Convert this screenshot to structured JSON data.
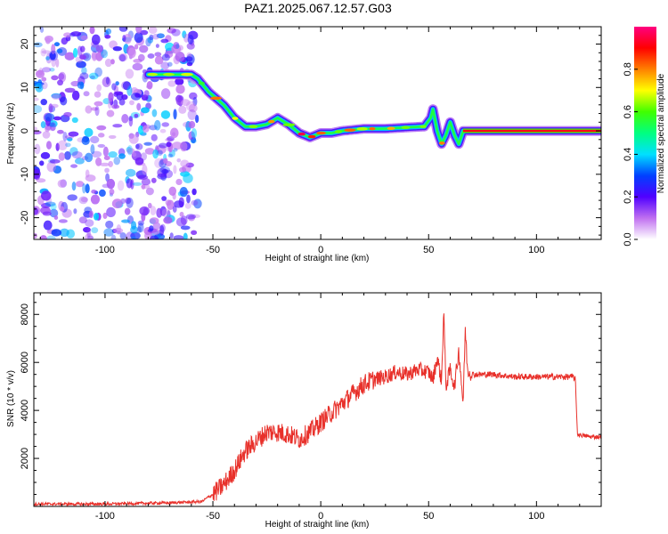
{
  "title": "PAZ1.2025.067.12.57.G03",
  "chart_data": [
    {
      "type": "heatmap",
      "xlabel": "Height of straight line (km)",
      "ylabel": "Frequency (Hz)",
      "xlim": [
        -133,
        130
      ],
      "ylim": [
        -25,
        24
      ],
      "xticks": [
        -100,
        -50,
        0,
        50,
        100
      ],
      "yticks": [
        -20,
        -10,
        0,
        10,
        20
      ],
      "colorbar": {
        "label": "Normalized spectral amplitude",
        "range": [
          0,
          1
        ],
        "ticks": [
          "0.0",
          "0.2",
          "0.4",
          "0.6",
          "0.8"
        ],
        "tick_values": [
          0,
          0.2,
          0.4,
          0.6,
          0.8
        ],
        "colors": [
          "#ffffff",
          "#c070f0",
          "#5000ff",
          "#0040ff",
          "#00e0ff",
          "#00ff80",
          "#40ff00",
          "#ffff00",
          "#ff8000",
          "#ff0000",
          "#ff0080"
        ]
      },
      "ridge": {
        "x": [
          -80,
          -60,
          -57,
          -52,
          -45,
          -40,
          -35,
          -30,
          -25,
          -20,
          -15,
          -10,
          -5,
          0,
          5,
          10,
          20,
          30,
          40,
          48,
          51,
          52,
          54,
          56,
          58,
          60,
          62,
          64,
          66,
          70,
          130
        ],
        "y": [
          13,
          13,
          12,
          9,
          6,
          3,
          1,
          1,
          1.5,
          3,
          1.5,
          -0.5,
          -1.5,
          -0.5,
          -0.5,
          0,
          0.5,
          0.5,
          0.8,
          1,
          3,
          5,
          0,
          -3,
          -1,
          2,
          -1,
          -3,
          0,
          0,
          0
        ]
      }
    },
    {
      "type": "line",
      "xlabel": "Height of straight line (km)",
      "ylabel": "SNR (10 * v/v)",
      "xlim": [
        -133,
        130
      ],
      "ylim": [
        0,
        8900
      ],
      "xticks": [
        -100,
        -50,
        0,
        50,
        100
      ],
      "yticks": [
        2000,
        4000,
        6000,
        8000
      ],
      "color": "#e8302a",
      "series": [
        {
          "x": [
            -133,
            -100,
            -70,
            -55,
            -52,
            -50,
            -45,
            -40,
            -35,
            -30,
            -25,
            -20,
            -15,
            -10,
            -5,
            0,
            5,
            10,
            15,
            20,
            25,
            30,
            35,
            40,
            45,
            50,
            52,
            54,
            56,
            57,
            58,
            60,
            62,
            64,
            66,
            67,
            68,
            70,
            80,
            90,
            100,
            110,
            117,
            118,
            119,
            125,
            130
          ],
          "y": [
            100,
            100,
            150,
            200,
            400,
            500,
            900,
            1500,
            2300,
            2700,
            3100,
            3100,
            3000,
            2800,
            3100,
            3500,
            3900,
            4300,
            4700,
            5100,
            5300,
            5400,
            5600,
            5500,
            5700,
            5600,
            5300,
            6200,
            5200,
            8200,
            5000,
            5700,
            5000,
            6500,
            4300,
            7400,
            5700,
            5500,
            5500,
            5400,
            5400,
            5400,
            5400,
            5300,
            3000,
            2900,
            2900
          ]
        }
      ]
    }
  ]
}
